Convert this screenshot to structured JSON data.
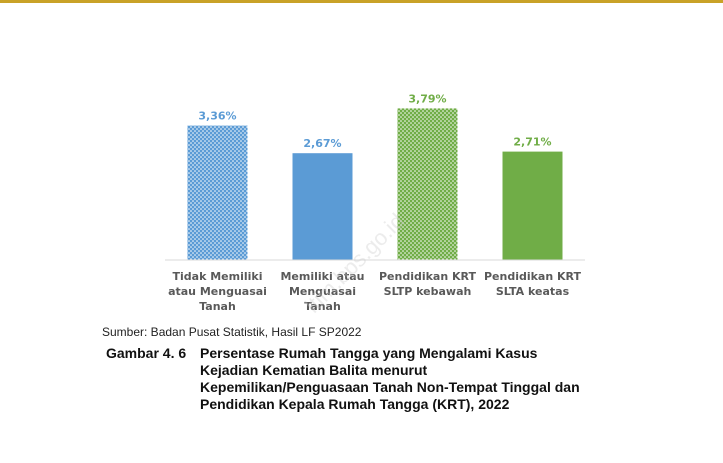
{
  "chart_data": {
    "type": "bar",
    "categories": [
      [
        "Tidak Memiliki",
        "atau Menguasai",
        "Tanah"
      ],
      [
        "Memiliki atau",
        "Menguasai",
        "Tanah"
      ],
      [
        "Pendidikan KRT",
        "SLTP kebawah"
      ],
      [
        "Pendidikan KRT",
        "SLTA keatas"
      ]
    ],
    "values": [
      3.36,
      2.67,
      3.79,
      2.71
    ],
    "value_labels": [
      "3,36%",
      "2,67%",
      "3,79%",
      "2,71%"
    ],
    "colors": [
      "#5b9bd5",
      "#5b9bd5",
      "#70ad47",
      "#70ad47"
    ],
    "patterns": [
      "dotted",
      "solid",
      "dotted",
      "solid"
    ],
    "ylim": [
      0,
      4.1
    ],
    "grid": false,
    "title": "",
    "xlabel": "",
    "ylabel": ""
  },
  "source_text": "Sumber: Badan Pusat Statistik, Hasil LF SP2022",
  "caption": {
    "number": "Gambar 4. 6",
    "lines": [
      "Persentase Rumah Tangga yang Mengalami Kasus",
      "Kejadian Kematian Balita menurut",
      "Kepemilikan/Penguasaan Tanah Non-Tempat Tinggal dan",
      "Pendidikan Kepala Rumah Tangga (KRT), 2022"
    ]
  },
  "watermark": "ltim.bps.go.id"
}
